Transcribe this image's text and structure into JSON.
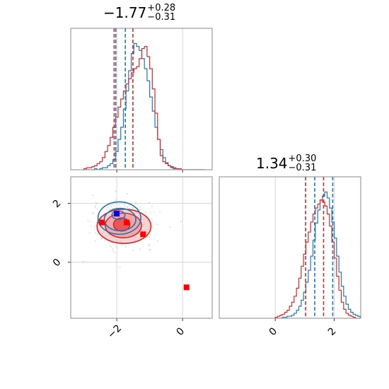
{
  "chart_data": {
    "type": "corner",
    "panels": [
      {
        "id": "hist-param-1",
        "type": "histogram",
        "title": {
          "value": "−1.77",
          "plus": "+0.28",
          "minus": "−0.31"
        },
        "xlim": [
          -3.4,
          0.9
        ],
        "xticks": [
          -2,
          0
        ],
        "grid": true,
        "series": [
          {
            "name": "",
            "color": "#1f77b4",
            "bins": {
              "start": -3.0,
              "width": 0.08,
              "counts": [
                0,
                0,
                0,
                0,
                1,
                0,
                1,
                2,
                2,
                4,
                6,
                10,
                18,
                30,
                42,
                60,
                78,
                98,
                115,
                125,
                122,
                118,
                110,
                100,
                88,
                72,
                58,
                42,
                30,
                20,
                12,
                7,
                4,
                2,
                1,
                1,
                0,
                0,
                0,
                0,
                0,
                0,
                0,
                0,
                0,
                0
              ]
            }
          },
          {
            "name": "",
            "color": "#d62728",
            "bins": {
              "start": -3.0,
              "width": 0.08,
              "counts": [
                1,
                2,
                2,
                3,
                4,
                6,
                8,
                12,
                18,
                24,
                32,
                42,
                52,
                62,
                70,
                78,
                85,
                90,
                96,
                100,
                102,
                110,
                120,
                122,
                112,
                100,
                80,
                56,
                30,
                14,
                8,
                6,
                4,
                3,
                2,
                1,
                1,
                0,
                0,
                0,
                0,
                0,
                0,
                0,
                0,
                0
              ]
            }
          }
        ],
        "vlines": [
          {
            "x": -2.08,
            "color": "#d62728"
          },
          {
            "x": -1.51,
            "color": "#d62728"
          },
          {
            "x": -2.03,
            "color": "#1f77b4"
          },
          {
            "x": -1.74,
            "color": "#1f77b4"
          }
        ]
      },
      {
        "id": "scatter-contour",
        "type": "contour",
        "xlim": [
          -3.4,
          0.9
        ],
        "ylim": [
          -1.9,
          2.9
        ],
        "xticks": [
          -2,
          0
        ],
        "yticks": [
          0,
          2
        ],
        "grid": true,
        "red_contours": [
          {
            "cx": -1.85,
            "cy": 1.28,
            "rx": 0.25,
            "ry": 0.22,
            "fill": "#e8474b",
            "opacity": 0.85
          },
          {
            "cx": -1.8,
            "cy": 1.25,
            "rx": 0.55,
            "ry": 0.42,
            "fill": "#f19a9b",
            "opacity": 0.75
          },
          {
            "cx": -1.78,
            "cy": 1.22,
            "rx": 0.82,
            "ry": 0.58,
            "fill": "#f8c9c9",
            "opacity": 0.8
          }
        ],
        "blue_contours": [
          {
            "cx": -1.95,
            "cy": 1.6,
            "rx": 0.2,
            "ry": 0.14
          },
          {
            "cx": -1.9,
            "cy": 1.45,
            "rx": 0.48,
            "ry": 0.38
          },
          {
            "cx": -1.92,
            "cy": 1.5,
            "rx": 0.65,
            "ry": 0.55
          }
        ],
        "markers": [
          {
            "x": -2.0,
            "y": 1.65,
            "color": "#0000ff"
          },
          {
            "x": -2.45,
            "y": 1.35,
            "color": "#ff0000"
          },
          {
            "x": -1.7,
            "y": 1.35,
            "color": "#ff0000"
          },
          {
            "x": -1.2,
            "y": 0.95,
            "color": "#ff0000"
          },
          {
            "x": 0.12,
            "y": -0.85,
            "color": "#ff0000"
          }
        ]
      },
      {
        "id": "hist-param-2",
        "type": "histogram",
        "title": {
          "value": "1.34",
          "plus": "+0.30",
          "minus": "−0.31"
        },
        "xlim": [
          -1.9,
          2.9
        ],
        "xticks": [
          0,
          2
        ],
        "grid": true,
        "series": [
          {
            "name": "",
            "color": "#1f77b4",
            "bins": {
              "start": 0.0,
              "width": 0.08,
              "counts": [
                0,
                0,
                0,
                1,
                1,
                2,
                2,
                3,
                5,
                8,
                12,
                18,
                26,
                36,
                48,
                62,
                78,
                95,
                108,
                118,
                122,
                126,
                120,
                110,
                96,
                80,
                62,
                46,
                32,
                22,
                14,
                9,
                6,
                4,
                3,
                2,
                1,
                1,
                0,
                0
              ]
            }
          },
          {
            "name": "",
            "color": "#d62728",
            "bins": {
              "start": 0.0,
              "width": 0.08,
              "counts": [
                1,
                2,
                3,
                4,
                6,
                8,
                12,
                16,
                22,
                30,
                40,
                52,
                64,
                76,
                86,
                96,
                104,
                110,
                114,
                118,
                116,
                112,
                104,
                92,
                76,
                60,
                42,
                28,
                16,
                9,
                5,
                3,
                2,
                1,
                0,
                0,
                0,
                0,
                0,
                0
              ]
            }
          }
        ],
        "vlines": [
          {
            "x": 1.03,
            "color": "#d62728"
          },
          {
            "x": 1.64,
            "color": "#d62728"
          },
          {
            "x": 1.34,
            "color": "#1f77b4"
          },
          {
            "x": 1.95,
            "color": "#1f77b4"
          }
        ]
      }
    ]
  }
}
